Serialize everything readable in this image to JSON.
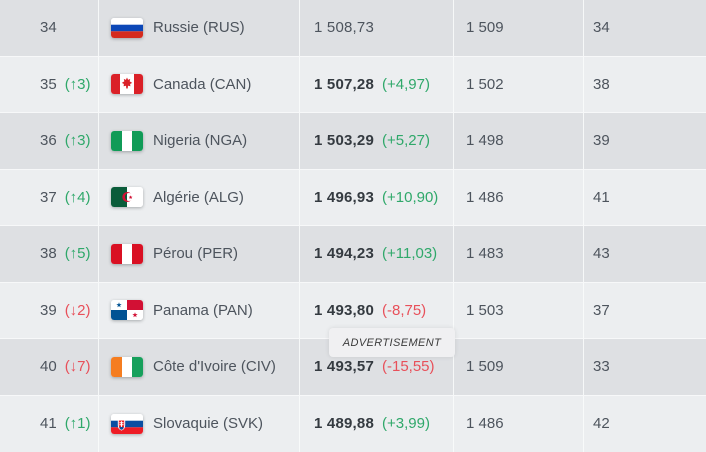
{
  "ad_label": "ADVERTISEMENT",
  "colors": {
    "row_dark": "#dee0e3",
    "row_light": "#eceef0",
    "text_main": "#4d545d",
    "text_points_bold": "#343a40",
    "change_up_green": "#2fa86a",
    "change_down_red": "#e8505a",
    "ad_background": "#f0f0f2"
  },
  "table": {
    "columns": [
      "rank",
      "team",
      "points",
      "previous_points",
      "previous_rank"
    ],
    "rows": [
      {
        "rank": "34",
        "change": "",
        "change_dir": "none",
        "flag": "russia",
        "country": "Russie (RUS)",
        "points": "1 508,73",
        "points_change": "",
        "points_change_dir": "none",
        "prev_points": "1 509",
        "prev_rank": "34"
      },
      {
        "rank": "35",
        "change": "(↑3)",
        "change_dir": "up",
        "flag": "canada",
        "country": "Canada (CAN)",
        "points": "1 507,28",
        "points_change": "(+4,97)",
        "points_change_dir": "up",
        "prev_points": "1 502",
        "prev_rank": "38"
      },
      {
        "rank": "36",
        "change": "(↑3)",
        "change_dir": "up",
        "flag": "nigeria",
        "country": "Nigeria (NGA)",
        "points": "1 503,29",
        "points_change": "(+5,27)",
        "points_change_dir": "up",
        "prev_points": "1 498",
        "prev_rank": "39"
      },
      {
        "rank": "37",
        "change": "(↑4)",
        "change_dir": "up",
        "flag": "algeria",
        "country": "Algérie (ALG)",
        "points": "1 496,93",
        "points_change": "(+10,90)",
        "points_change_dir": "up",
        "prev_points": "1 486",
        "prev_rank": "41"
      },
      {
        "rank": "38",
        "change": "(↑5)",
        "change_dir": "up",
        "flag": "peru",
        "country": "Pérou (PER)",
        "points": "1 494,23",
        "points_change": "(+11,03)",
        "points_change_dir": "up",
        "prev_points": "1 483",
        "prev_rank": "43"
      },
      {
        "rank": "39",
        "change": "(↓2)",
        "change_dir": "down",
        "flag": "panama",
        "country": "Panama (PAN)",
        "points": "1 493,80",
        "points_change": "(-8,75)",
        "points_change_dir": "down",
        "prev_points": "1 503",
        "prev_rank": "37"
      },
      {
        "rank": "40",
        "change": "(↓7)",
        "change_dir": "down",
        "flag": "ivory-coast",
        "country": "Côte d'Ivoire (CIV)",
        "points": "1 493,57",
        "points_change": "(-15,55)",
        "points_change_dir": "down",
        "prev_points": "1 509",
        "prev_rank": "33"
      },
      {
        "rank": "41",
        "change": "(↑1)",
        "change_dir": "up",
        "flag": "slovakia",
        "country": "Slovaquie (SVK)",
        "points": "1 489,88",
        "points_change": "(+3,99)",
        "points_change_dir": "up",
        "prev_points": "1 486",
        "prev_rank": "42"
      }
    ]
  }
}
